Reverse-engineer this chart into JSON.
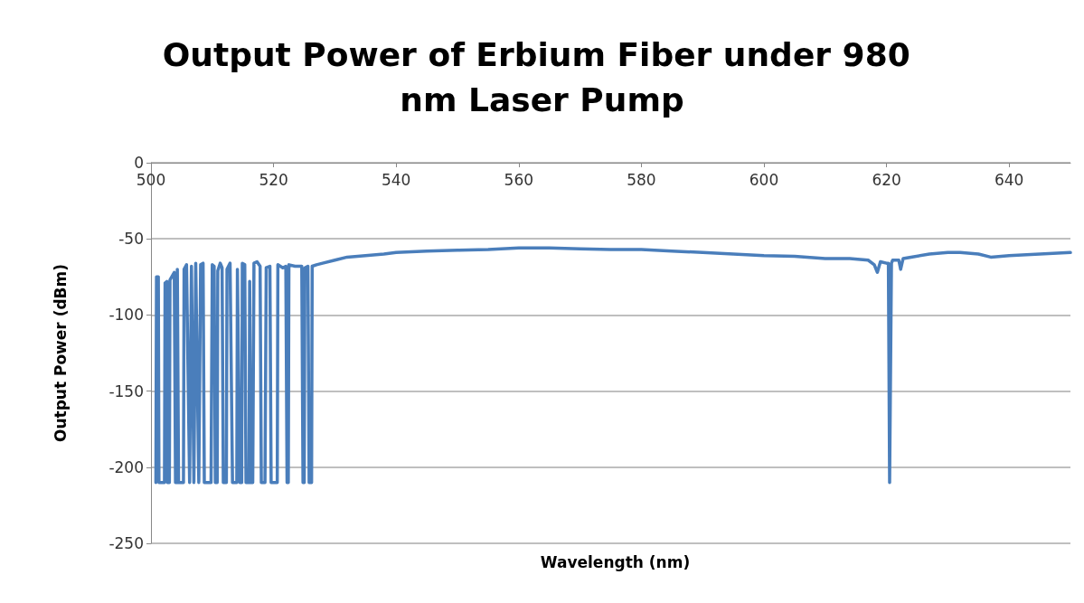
{
  "chart_data": {
    "type": "line",
    "title": "Output Power of Erbium Fiber under 980 nm Laser Pump",
    "xlabel": "Wavelength (nm)",
    "ylabel": "Output Power (dBm)",
    "xlim": [
      500,
      650
    ],
    "xticks": [
      500,
      520,
      540,
      560,
      580,
      600,
      620,
      640
    ],
    "ylim": [
      -250,
      0
    ],
    "yticks": [
      -250,
      -200,
      -150,
      -100,
      -50,
      0
    ],
    "grid": "y",
    "marker": "none",
    "line_style": "solid",
    "series": [
      {
        "color": "#4a7ebb",
        "x": [
          500.8,
          500.9,
          501.2,
          501.3,
          502.2,
          502.3,
          502.6,
          502.7,
          503.0,
          503.1,
          503.8,
          504.0,
          504.2,
          504.3,
          504.5,
          505.3,
          505.4,
          505.8,
          506.3,
          506.6,
          507.0,
          507.3,
          507.8,
          508.1,
          508.5,
          508.7,
          509.8,
          510.0,
          510.3,
          510.5,
          510.8,
          510.9,
          511.3,
          511.6,
          511.8,
          512.3,
          512.4,
          512.9,
          513.3,
          514.0,
          514.1,
          514.5,
          514.8,
          514.9,
          515.3,
          515.5,
          516.0,
          516.1,
          516.3,
          516.6,
          516.8,
          517.3,
          517.8,
          518.0,
          518.6,
          518.8,
          519.4,
          519.6,
          520.6,
          520.7,
          521.5,
          522.0,
          522.2,
          522.4,
          522.5,
          523.5,
          524.6,
          524.8,
          525.0,
          525.1,
          525.6,
          525.8,
          526.2,
          526.3,
          527,
          528,
          530,
          532,
          535,
          538,
          540,
          545,
          550,
          555,
          560,
          565,
          570,
          575,
          580,
          585,
          590,
          595,
          600,
          605,
          610,
          614,
          617,
          618,
          618.5,
          619,
          620,
          620.3,
          620.5,
          620.8,
          621,
          622,
          622.3,
          622.7,
          624,
          627,
          630,
          632,
          635,
          637,
          640,
          645,
          650
        ],
        "values": [
          -210,
          -75,
          -75,
          -210,
          -210,
          -79,
          -78,
          -210,
          -210,
          -77,
          -72,
          -210,
          -210,
          -70,
          -210,
          -210,
          -70,
          -67,
          -210,
          -68,
          -210,
          -66,
          -210,
          -67,
          -66,
          -210,
          -210,
          -67,
          -68,
          -210,
          -210,
          -71,
          -66,
          -69,
          -210,
          -210,
          -70,
          -66,
          -210,
          -210,
          -70,
          -210,
          -210,
          -66,
          -67,
          -210,
          -210,
          -78,
          -210,
          -210,
          -66,
          -65,
          -68,
          -210,
          -210,
          -69,
          -68,
          -210,
          -210,
          -67,
          -69,
          -68,
          -210,
          -210,
          -67,
          -68,
          -68,
          -210,
          -210,
          -69,
          -68,
          -210,
          -210,
          -68,
          -67,
          -66,
          -64,
          -62,
          -61,
          -60,
          -59,
          -58,
          -57.5,
          -57,
          -56,
          -56,
          -56.5,
          -57,
          -57,
          -58,
          -59,
          -60,
          -61,
          -61.5,
          -63,
          -63,
          -64,
          -67,
          -72,
          -65,
          -66,
          -66,
          -210,
          -66,
          -64,
          -64,
          -70,
          -63,
          -62,
          -60,
          -59,
          -59,
          -60,
          -62,
          -61,
          -60,
          -59
        ]
      }
    ]
  }
}
